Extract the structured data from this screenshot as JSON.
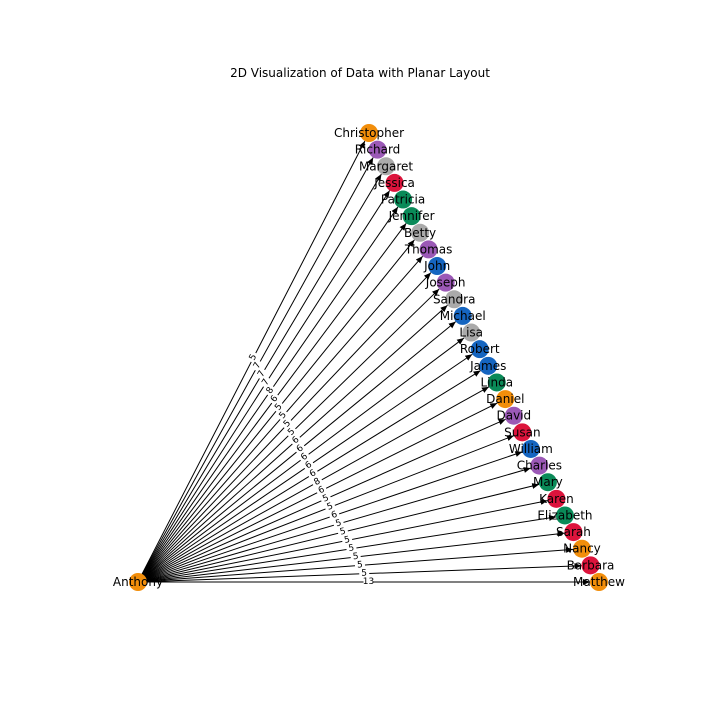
{
  "title": "2D Visualization of Data with Planar Layout",
  "colors": {
    "orange": "#F28E0B",
    "purple": "#9B59B6",
    "gray": "#AAAAAA",
    "red": "#DC143C",
    "green": "#0A8A58",
    "blue": "#1565C0",
    "edge": "#000000"
  },
  "hub": {
    "name": "Anthony",
    "color": "orange"
  },
  "nodes": [
    {
      "name": "Christopher",
      "color": "orange",
      "weight": "5"
    },
    {
      "name": "Richard",
      "color": "purple",
      "weight": "7"
    },
    {
      "name": "Margaret",
      "color": "gray",
      "weight": "7"
    },
    {
      "name": "Jessica",
      "color": "red",
      "weight": "7"
    },
    {
      "name": "Patricia",
      "color": "green",
      "weight": "8"
    },
    {
      "name": "Jennifer",
      "color": "green",
      "weight": "6"
    },
    {
      "name": "Betty",
      "color": "gray",
      "weight": "5"
    },
    {
      "name": "Thomas",
      "color": "purple",
      "weight": "5"
    },
    {
      "name": "John",
      "color": "blue",
      "weight": "5"
    },
    {
      "name": "Joseph",
      "color": "purple",
      "weight": "5"
    },
    {
      "name": "Sandra",
      "color": "gray",
      "weight": "6"
    },
    {
      "name": "Michael",
      "color": "blue",
      "weight": "6"
    },
    {
      "name": "Lisa",
      "color": "gray",
      "weight": "6"
    },
    {
      "name": "Robert",
      "color": "blue",
      "weight": "6"
    },
    {
      "name": "James",
      "color": "blue",
      "weight": "6"
    },
    {
      "name": "Linda",
      "color": "green",
      "weight": "8"
    },
    {
      "name": "Daniel",
      "color": "orange",
      "weight": "6"
    },
    {
      "name": "David",
      "color": "purple",
      "weight": "5"
    },
    {
      "name": "Susan",
      "color": "red",
      "weight": "5"
    },
    {
      "name": "William",
      "color": "blue",
      "weight": "6"
    },
    {
      "name": "Charles",
      "color": "purple",
      "weight": "5"
    },
    {
      "name": "Mary",
      "color": "green",
      "weight": "5"
    },
    {
      "name": "Karen",
      "color": "red",
      "weight": "5"
    },
    {
      "name": "Elizabeth",
      "color": "green",
      "weight": "5"
    },
    {
      "name": "Sarah",
      "color": "red",
      "weight": "5"
    },
    {
      "name": "Nancy",
      "color": "orange",
      "weight": "5"
    },
    {
      "name": "Barbara",
      "color": "red",
      "weight": "5"
    },
    {
      "name": "Matthew",
      "color": "orange",
      "weight": "13"
    }
  ]
}
